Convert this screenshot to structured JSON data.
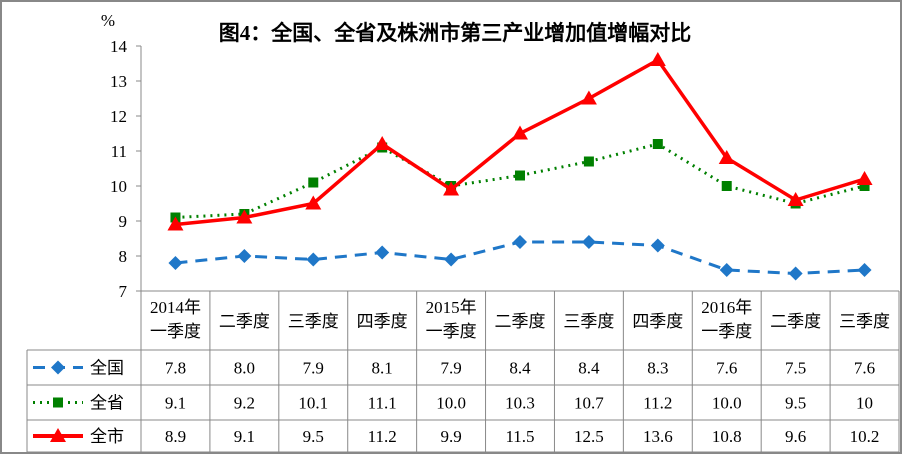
{
  "chart_data": {
    "type": "line",
    "title": "图4：全国、全省及株洲市第三产业增加值增幅对比",
    "ylabel": "%",
    "ylim": [
      7,
      14
    ],
    "yticks": [
      7,
      8,
      9,
      10,
      11,
      12,
      13,
      14
    ],
    "grid": false,
    "legend": "table-left",
    "categories": [
      "2014年\n一季度",
      "二季度",
      "三季度",
      "四季度",
      "2015年\n一季度",
      "二季度",
      "三季度",
      "四季度",
      "2016年\n一季度",
      "二季度",
      "三季度"
    ],
    "series": [
      {
        "name": "全国",
        "color": "#1F77C8",
        "style": "dashed",
        "marker": "diamond",
        "values": [
          7.8,
          8.0,
          7.9,
          8.1,
          7.9,
          8.4,
          8.4,
          8.3,
          7.6,
          7.5,
          7.6
        ],
        "labels": [
          "7.8",
          "8.0",
          "7.9",
          "8.1",
          "7.9",
          "8.4",
          "8.4",
          "8.3",
          "7.6",
          "7.5",
          "7.6"
        ]
      },
      {
        "name": "全省",
        "color": "#008000",
        "style": "dotted",
        "marker": "square",
        "values": [
          9.1,
          9.2,
          10.1,
          11.1,
          10.0,
          10.3,
          10.7,
          11.2,
          10.0,
          9.5,
          10
        ],
        "labels": [
          "9.1",
          "9.2",
          "10.1",
          "11.1",
          "10.0",
          "10.3",
          "10.7",
          "11.2",
          "10.0",
          "9.5",
          "10"
        ]
      },
      {
        "name": "全市",
        "color": "#FF0000",
        "style": "solid",
        "marker": "triangle",
        "values": [
          8.9,
          9.1,
          9.5,
          11.2,
          9.9,
          11.5,
          12.5,
          13.6,
          10.8,
          9.6,
          10.2
        ],
        "labels": [
          "8.9",
          "9.1",
          "9.5",
          "11.2",
          "9.9",
          "11.5",
          "12.5",
          "13.6",
          "10.8",
          "9.6",
          "10.2"
        ]
      }
    ]
  }
}
